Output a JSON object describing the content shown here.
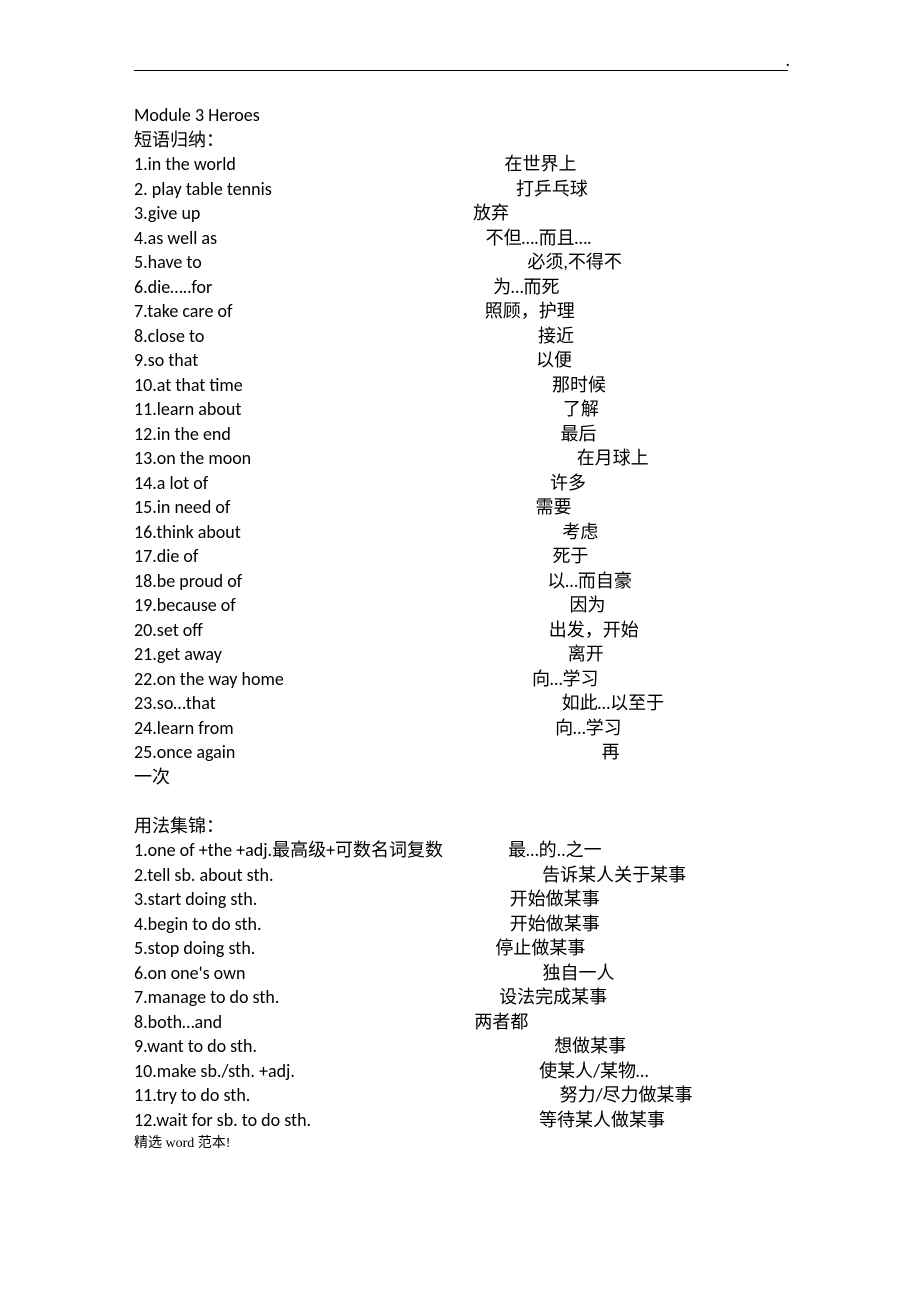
{
  "module_title": "Module 3 Heroes",
  "section1_title": "短语归纳：",
  "phrases": [
    {
      "num": "1.",
      "en": "in the world",
      "pad": "                                                                  ",
      "zh": "在世界上"
    },
    {
      "num": "2.",
      "en": " play table tennis",
      "pad": "                                                            ",
      "zh": "打乒乓球"
    },
    {
      "num": "3.",
      "en": "give up",
      "pad": "                                                                   ",
      "zh": "放弃"
    },
    {
      "num": "4.",
      "en": "as well as",
      "pad": "                                                                  ",
      "zh": "不但….而且…."
    },
    {
      "num": "5.",
      "en": "have to",
      "pad": "                                                                                ",
      "zh": "必须,不得不"
    },
    {
      "num": "6.",
      "en": "die…..for",
      "pad": "                                                                     ",
      "zh": "为…而死"
    },
    {
      "num": "7.",
      "en": "take care of",
      "pad": "                                                              ",
      "zh": "照顾，护理"
    },
    {
      "num": "8.",
      "en": "close to",
      "pad": "                                                                                  ",
      "zh": "接近"
    },
    {
      "num": "9.",
      "en": "so that",
      "pad": "                                                                                   ",
      "zh": "以便"
    },
    {
      "num": "10.",
      "en": "at that time",
      "pad": "                                                                            ",
      "zh": "那时候"
    },
    {
      "num": "11.",
      "en": "learn about",
      "pad": "                                                                               ",
      "zh": "了解"
    },
    {
      "num": "12.",
      "en": "in the end",
      "pad": "                                                                                 ",
      "zh": "最后"
    },
    {
      "num": "13.",
      "en": "on the moon",
      "pad": "                                                                                ",
      "zh": "在月球上"
    },
    {
      "num": "14.",
      "en": "a lot of",
      "pad": "                                                                                    ",
      "zh": "许多"
    },
    {
      "num": "15.",
      "en": "in need of",
      "pad": "                                                                           ",
      "zh": "需要"
    },
    {
      "num": "16.",
      "en": "think about",
      "pad": "                                                                               ",
      "zh": "考虑"
    },
    {
      "num": "17.",
      "en": "die of",
      "pad": "                                                                                       ",
      "zh": "死于"
    },
    {
      "num": "18.",
      "en": "be proud of",
      "pad": "                                                                           ",
      "zh": "以…而自豪"
    },
    {
      "num": "19.",
      "en": "because of",
      "pad": "                                                                                  ",
      "zh": "因为"
    },
    {
      "num": "20.",
      "en": "set off",
      "pad": "                                                                                     ",
      "zh": "出发，开始"
    },
    {
      "num": "21.",
      "en": "get away",
      "pad": "                                                                                     ",
      "zh": "离开"
    },
    {
      "num": "22.",
      "en": "on the way home",
      "pad": "                                                             ",
      "zh": "向…学习"
    },
    {
      "num": "23.",
      "en": "so…that",
      "pad": "                                                                                     ",
      "zh": "如此…以至于"
    },
    {
      "num": "24.",
      "en": "learn from",
      "pad": "                                                                               ",
      "zh": "向…学习"
    },
    {
      "num": "25.",
      "en": "once again",
      "pad": "                                                                                          ",
      "zh": "再"
    }
  ],
  "phrases_wrap": "一次",
  "section2_title": "用法集锦：",
  "usages": [
    {
      "num": "1.",
      "en": "one of +the +adj.最高级+可数名词复数",
      "pad": "                ",
      "zh": "最…的..之一"
    },
    {
      "num": "2.",
      "en": "tell sb. about sth.",
      "pad": "                                                                  ",
      "zh": "告诉某人关于某事"
    },
    {
      "num": "3.",
      "en": "start doing sth.",
      "pad": "                                                              ",
      "zh": "开始做某事"
    },
    {
      "num": "4.",
      "en": "begin to do sth.",
      "pad": "                                                             ",
      "zh": "开始做某事"
    },
    {
      "num": "5.",
      "en": "stop doing sth.",
      "pad": "                                                           ",
      "zh": "停止做某事"
    },
    {
      "num": "6.",
      "en": "on one's own",
      "pad": "                                                                         ",
      "zh": "独自一人"
    },
    {
      "num": "7.",
      "en": "manage to do sth.",
      "pad": "                                                      ",
      "zh": "设法完成某事"
    },
    {
      "num": "8.",
      "en": "both…and",
      "pad": "                                                              ",
      "zh": "两者都"
    },
    {
      "num": "9.",
      "en": "want to do sth.",
      "pad": "                                                                         ",
      "zh": "想做某事"
    },
    {
      "num": "10.",
      "en": "make sb./sth. +adj.",
      "pad": "                                                            ",
      "zh": "使某人/某物…"
    },
    {
      "num": "11.",
      "en": "try to do sth.",
      "pad": "                                                                            ",
      "zh": "努力/尽力做某事"
    },
    {
      "num": "12.",
      "en": "wait for sb. to do sth.",
      "pad": "                                                        ",
      "zh": "等待某人做某事"
    }
  ],
  "footer_text": "精选 word 范本!"
}
